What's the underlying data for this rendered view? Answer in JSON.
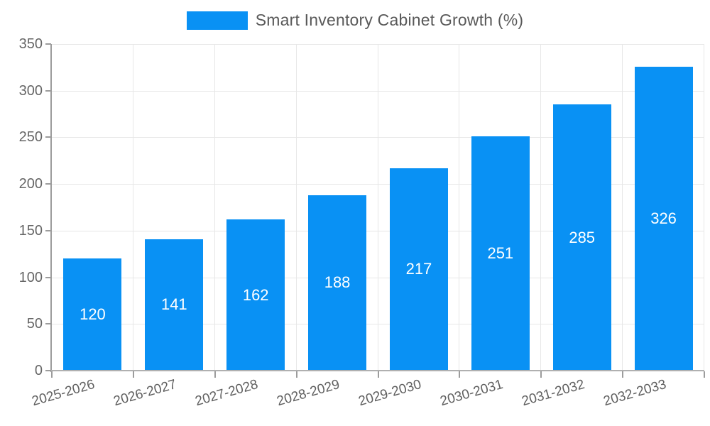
{
  "chart_data": {
    "type": "bar",
    "title": "Smart Inventory Cabinet Growth (%)",
    "categories": [
      "2025-2026",
      "2026-2027",
      "2027-2028",
      "2028-2029",
      "2029-2030",
      "2030-2031",
      "2031-2032",
      "2032-2033"
    ],
    "values": [
      120,
      141,
      162,
      188,
      217,
      251,
      285,
      326
    ],
    "xlabel": "",
    "ylabel": "",
    "ylim": [
      0,
      350
    ],
    "y_tick_step": 50,
    "y_tick_labels": [
      "0",
      "50",
      "100",
      "150",
      "200",
      "250",
      "300",
      "350"
    ],
    "grid": true,
    "legend_position": "top",
    "bar_color": "#0991f4",
    "bar_label_color": "#ffffff"
  },
  "legend": {
    "label": "Smart Inventory Cabinet Growth (%)",
    "swatch_color": "#0991f4"
  },
  "colors": {
    "grid_line": "#e7e7e7",
    "y_axis_line": "#9c9c9c",
    "x_axis_line": "#b0b0b0",
    "tick": "#9c9c9c",
    "y_axis_text": "#666666",
    "x_axis_text": "#606060",
    "legend_text": "#595959"
  }
}
